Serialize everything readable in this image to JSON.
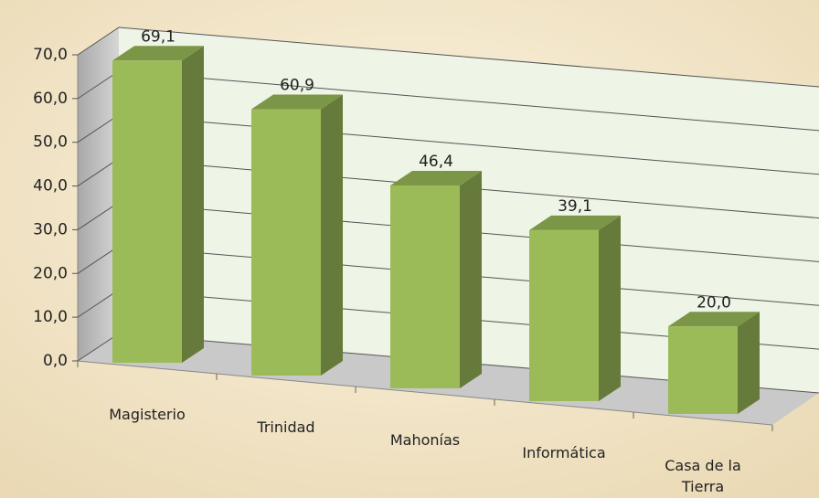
{
  "chart_data": {
    "type": "bar",
    "categories": [
      "Magisterio",
      "Trinidad",
      "Mahonías",
      "Informática",
      "Casa de la Tierra"
    ],
    "values": [
      69.1,
      60.9,
      46.4,
      39.1,
      20.0
    ],
    "value_labels": [
      "69,1",
      "60,9",
      "46,4",
      "39,1",
      "20,0"
    ],
    "color": "#9bbb59",
    "ylim": [
      0,
      70
    ],
    "yticks": [
      {
        "value": 0,
        "label": "0,0"
      },
      {
        "value": 10,
        "label": "10,0"
      },
      {
        "value": 20,
        "label": "20,0"
      },
      {
        "value": 30,
        "label": "30,0"
      },
      {
        "value": 40,
        "label": "40,0"
      },
      {
        "value": 50,
        "label": "50,0"
      },
      {
        "value": 60,
        "label": "60,0"
      },
      {
        "value": 70,
        "label": "70,0"
      }
    ],
    "grid": true
  }
}
